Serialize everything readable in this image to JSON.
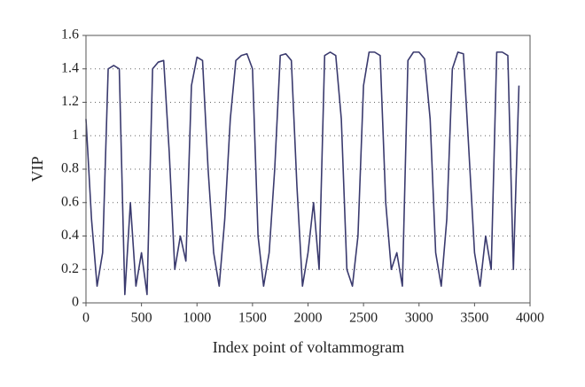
{
  "chart_data": {
    "type": "line",
    "x_label": "Index point of voltammogram",
    "y_label": "VIP",
    "x": [
      0,
      50,
      100,
      150,
      200,
      250,
      300,
      350,
      400,
      450,
      500,
      550,
      600,
      650,
      700,
      750,
      800,
      850,
      900,
      950,
      1000,
      1050,
      1100,
      1150,
      1200,
      1250,
      1300,
      1350,
      1400,
      1450,
      1500,
      1550,
      1600,
      1650,
      1700,
      1750,
      1800,
      1850,
      1900,
      1950,
      2000,
      2050,
      2100,
      2150,
      2200,
      2250,
      2300,
      2350,
      2400,
      2450,
      2500,
      2550,
      2600,
      2650,
      2700,
      2750,
      2800,
      2850,
      2900,
      2950,
      3000,
      3050,
      3100,
      3150,
      3200,
      3250,
      3300,
      3350,
      3400,
      3450,
      3500,
      3550,
      3600,
      3650,
      3700,
      3750,
      3800,
      3850,
      3900
    ],
    "series": [
      {
        "color": "#3a3a6e",
        "values": [
          1.1,
          0.5,
          0.1,
          0.3,
          1.4,
          1.42,
          1.4,
          0.05,
          0.6,
          0.1,
          0.3,
          0.05,
          1.4,
          1.44,
          1.45,
          0.9,
          0.2,
          0.4,
          0.25,
          1.3,
          1.47,
          1.45,
          0.8,
          0.3,
          0.1,
          0.5,
          1.1,
          1.45,
          1.48,
          1.49,
          1.4,
          0.4,
          0.1,
          0.3,
          0.8,
          1.48,
          1.49,
          1.45,
          0.7,
          0.1,
          0.3,
          0.6,
          0.2,
          1.48,
          1.5,
          1.48,
          1.1,
          0.2,
          0.1,
          0.4,
          1.3,
          1.5,
          1.5,
          1.48,
          0.6,
          0.2,
          0.3,
          0.1,
          1.45,
          1.5,
          1.5,
          1.46,
          1.1,
          0.3,
          0.1,
          0.5,
          1.4,
          1.5,
          1.49,
          0.9,
          0.3,
          0.1,
          0.4,
          0.2,
          1.5,
          1.5,
          1.48,
          0.2,
          1.3
        ]
      }
    ],
    "xlim": [
      0,
      4000
    ],
    "xticks": [
      0,
      500,
      1000,
      1500,
      2000,
      2500,
      3000,
      3500,
      4000
    ],
    "ylim": [
      0,
      1.6
    ],
    "yticks": [
      0,
      0.2,
      0.4,
      0.6,
      0.8,
      1,
      1.2,
      1.4,
      1.6
    ],
    "grid": true
  }
}
